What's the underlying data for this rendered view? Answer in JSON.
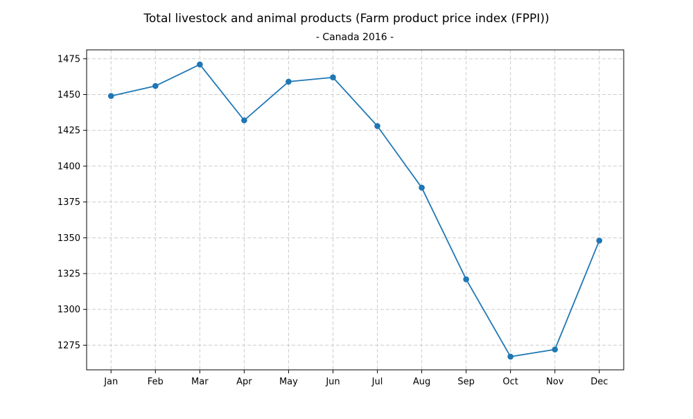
{
  "colors": {
    "line": "#1f77b4",
    "grid": "#cccccc",
    "axis": "#000000",
    "background": "#ffffff"
  },
  "chart_data": {
    "type": "line",
    "title": "Total livestock and animal products (Farm product price index (FPPI))",
    "subtitle": "- Canada 2016 -",
    "xlabel": "",
    "ylabel": "",
    "categories": [
      "Jan",
      "Feb",
      "Mar",
      "Apr",
      "May",
      "Jun",
      "Jul",
      "Aug",
      "Sep",
      "Oct",
      "Nov",
      "Dec"
    ],
    "series": [
      {
        "values": [
          1449,
          1456,
          1471,
          1432,
          1459,
          1462,
          1428,
          1385,
          1321,
          1267,
          1272,
          1348
        ],
        "marker": "circle"
      }
    ],
    "ylim": [
      1257.8,
      1481.2
    ],
    "yticks": [
      1275,
      1300,
      1325,
      1350,
      1375,
      1400,
      1425,
      1450,
      1475
    ],
    "grid": true,
    "legend": "none"
  }
}
